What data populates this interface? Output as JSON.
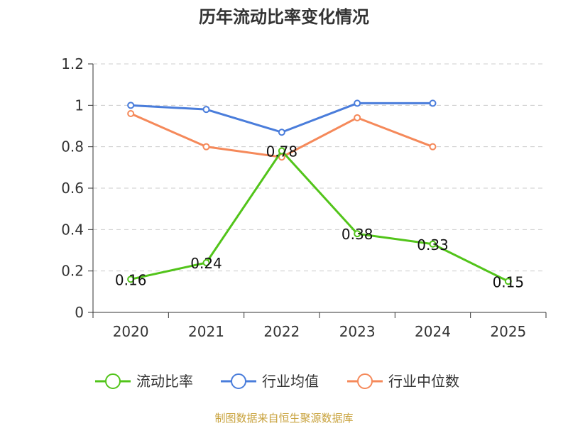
{
  "chart_data": {
    "type": "line",
    "title": "历年流动比率变化情况",
    "categories": [
      "2020",
      "2021",
      "2022",
      "2023",
      "2024",
      "2025"
    ],
    "ylim": [
      0,
      1.2
    ],
    "yticks": [
      "0",
      "0.2",
      "0.4",
      "0.6",
      "0.8",
      "1",
      "1.2"
    ],
    "grid": true,
    "legend_position": "bottom",
    "series": [
      {
        "name": "流动比率",
        "color": "#52c41a",
        "values": [
          0.16,
          0.24,
          0.78,
          0.38,
          0.33,
          0.15
        ],
        "labels": [
          "0.16",
          "0.24",
          "0.78",
          "0.38",
          "0.33",
          "0.15"
        ]
      },
      {
        "name": "行业均值",
        "color": "#4a7ddb",
        "values": [
          1.0,
          0.98,
          0.87,
          1.01,
          1.01,
          null
        ]
      },
      {
        "name": "行业中位数",
        "color": "#f5895a",
        "values": [
          0.96,
          0.8,
          0.75,
          0.94,
          0.8,
          null
        ]
      }
    ],
    "source": "制图数据来自恒生聚源数据库"
  }
}
